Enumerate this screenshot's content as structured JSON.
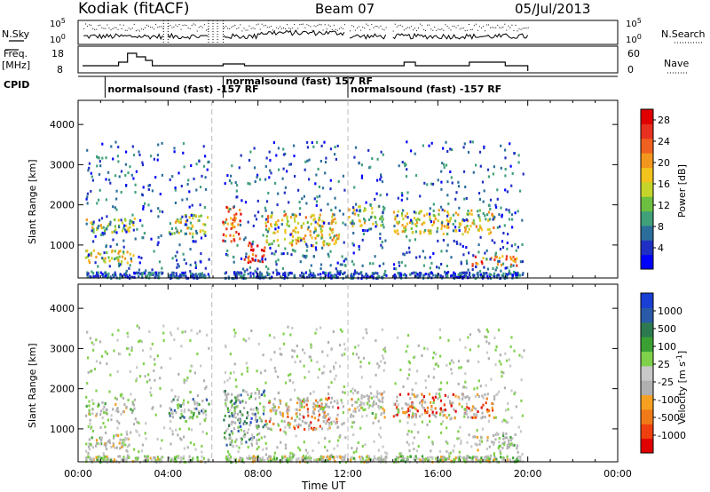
{
  "header": {
    "radar": "Kodiak (fitACF)",
    "beam": "Beam 07",
    "date": "05/Jul/2013"
  },
  "top_panels": {
    "nsky_label": "N.Sky",
    "nsearch_label": "N.Search",
    "freq_label_1": "Freq.",
    "freq_label_2": "[MHz]",
    "nave_label": "Nave",
    "cpid_label": "CPID",
    "noise_ticks_left": [
      "10^5",
      "10^0"
    ],
    "noise_ticks_right": [
      "10^5",
      "10^0"
    ],
    "freq_ticks": [
      "18",
      "8"
    ],
    "nave_ticks": [
      "60",
      "0"
    ],
    "cpid_segments": [
      {
        "label": "normalsound (fast) -157 RF",
        "start": 1.2
      },
      {
        "label": "normalsound (fast) 157 RF",
        "start": 6.45
      },
      {
        "label": "normalsound (fast) -157 RF",
        "start": 12.0
      }
    ]
  },
  "chart_data": [
    {
      "type": "heatmap",
      "name": "Power",
      "xlabel": "",
      "ylabel": "Slant Range [km]",
      "xlim": [
        0,
        24
      ],
      "ylim": [
        180,
        4600
      ],
      "yticks": [
        1000,
        2000,
        3000,
        4000
      ],
      "colorbar": {
        "label": "Power [dB]",
        "ticks": [
          "4",
          "8",
          "12",
          "16",
          "20",
          "24",
          "28"
        ],
        "tick_values": [
          4,
          8,
          12,
          16,
          20,
          24,
          28
        ],
        "range": [
          0,
          30
        ],
        "colors": [
          "#0000ff",
          "#1f2fc4",
          "#2c6e9b",
          "#3fa07a",
          "#6cbf40",
          "#c4d42a",
          "#f2c21d",
          "#f2961d",
          "#f06020",
          "#e83020",
          "#e00000"
        ]
      },
      "features": [
        {
          "t0": 0.3,
          "t1": 2.5,
          "r0": 1350,
          "r1": 1700,
          "level": 0.45
        },
        {
          "t0": 0.3,
          "t1": 2.5,
          "r0": 550,
          "r1": 900,
          "level": 0.55
        },
        {
          "t0": 4.0,
          "t1": 5.8,
          "r0": 1300,
          "r1": 1800,
          "level": 0.5
        },
        {
          "t0": 6.4,
          "t1": 7.2,
          "r0": 1100,
          "r1": 2000,
          "level": 0.8
        },
        {
          "t0": 7.3,
          "t1": 8.3,
          "r0": 600,
          "r1": 1100,
          "level": 0.9
        },
        {
          "t0": 8.3,
          "t1": 11.6,
          "r0": 1000,
          "r1": 1800,
          "level": 0.6
        },
        {
          "t0": 12.0,
          "t1": 13.6,
          "r0": 1500,
          "r1": 2000,
          "level": 0.45
        },
        {
          "t0": 14.0,
          "t1": 18.5,
          "r0": 1300,
          "r1": 1900,
          "level": 0.55
        },
        {
          "t0": 17.5,
          "t1": 19.5,
          "r0": 500,
          "r1": 750,
          "level": 0.8
        }
      ]
    },
    {
      "type": "heatmap",
      "name": "Velocity",
      "xlabel": "Time UT",
      "ylabel": "Slant Range [km]",
      "xlim": [
        0,
        24
      ],
      "ylim": [
        180,
        4600
      ],
      "xticks": [
        "00:00",
        "04:00",
        "08:00",
        "12:00",
        "16:00",
        "20:00",
        "00:00"
      ],
      "yticks": [
        1000,
        2000,
        3000,
        4000
      ],
      "colorbar": {
        "label": "Velocity [m s^-1]",
        "ticks": [
          "1000",
          "500",
          "100",
          "25",
          "-25",
          "-100",
          "-500",
          "-1000"
        ],
        "colors": [
          "#1a3fd4",
          "#2a5aa8",
          "#2e7a50",
          "#3aa034",
          "#7fd04a",
          "#c8c8c8",
          "#b0b0b0",
          "#f5a020",
          "#f07a18",
          "#f04010",
          "#e00000"
        ]
      },
      "features": [
        {
          "t0": 0.3,
          "t1": 2.5,
          "r0": 1350,
          "r1": 1700,
          "level": 0.5
        },
        {
          "t0": 0.3,
          "t1": 2.5,
          "r0": 550,
          "r1": 900,
          "level": 0.5
        },
        {
          "t0": 4.0,
          "t1": 5.8,
          "r0": 1300,
          "r1": 1800,
          "level": 0.3
        },
        {
          "t0": 6.4,
          "t1": 8.3,
          "r0": 600,
          "r1": 2000,
          "level": 0.25
        },
        {
          "t0": 8.3,
          "t1": 11.6,
          "r0": 1000,
          "r1": 1800,
          "level": 0.75
        },
        {
          "t0": 12.0,
          "t1": 13.6,
          "r0": 1300,
          "r1": 2000,
          "level": 0.55
        },
        {
          "t0": 14.0,
          "t1": 18.5,
          "r0": 1300,
          "r1": 1900,
          "level": 0.85
        },
        {
          "t0": 17.5,
          "t1": 19.5,
          "r0": 500,
          "r1": 900,
          "level": 0.5
        }
      ]
    }
  ]
}
